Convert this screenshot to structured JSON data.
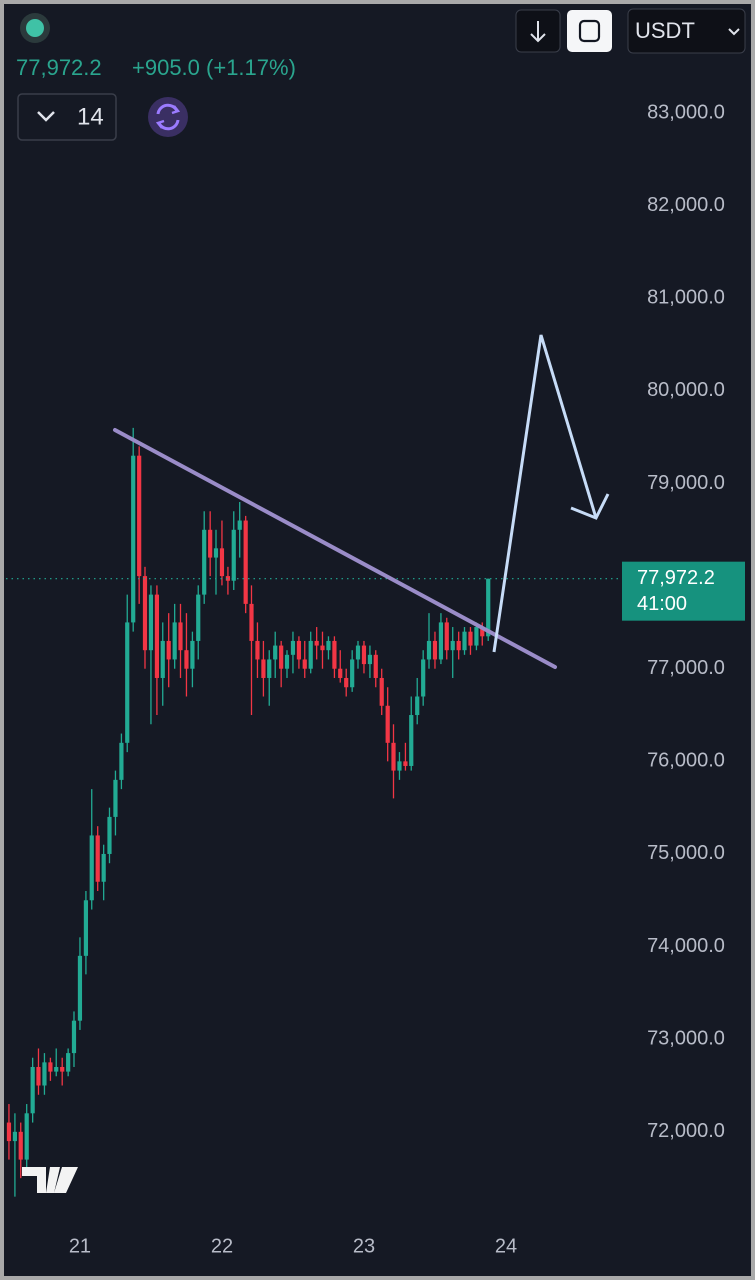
{
  "toolbar": {
    "change": "+905.0 (+1.17%)",
    "interval_count": "14",
    "currency": "USDT"
  },
  "chart_data": {
    "type": "candlestick",
    "x": [
      20.5,
      20.542,
      20.583,
      20.625,
      20.667,
      20.708,
      20.75,
      20.792,
      20.833,
      20.875,
      20.917,
      20.958,
      21.0,
      21.042,
      21.083,
      21.125,
      21.167,
      21.208,
      21.25,
      21.292,
      21.333,
      21.375,
      21.417,
      21.458,
      21.5,
      21.542,
      21.583,
      21.625,
      21.667,
      21.708,
      21.75,
      21.792,
      21.833,
      21.875,
      21.917,
      21.958,
      22.0,
      22.042,
      22.083,
      22.125,
      22.167,
      22.208,
      22.25,
      22.292,
      22.333,
      22.375,
      22.417,
      22.458,
      22.5,
      22.542,
      22.583,
      22.625,
      22.667,
      22.708,
      22.75,
      22.792,
      22.833,
      22.875,
      22.917,
      22.958,
      23.0,
      23.042,
      23.083,
      23.125,
      23.167,
      23.208,
      23.25,
      23.292,
      23.333,
      23.375,
      23.417,
      23.458,
      23.5,
      23.542,
      23.583,
      23.625,
      23.667,
      23.708,
      23.75,
      23.792,
      23.833,
      23.875
    ],
    "open": [
      72100,
      71900,
      72000,
      71700,
      72200,
      72700,
      72500,
      72750,
      72650,
      72700,
      72650,
      72850,
      73200,
      73900,
      74500,
      75200,
      74700,
      75000,
      75400,
      75800,
      76200,
      77500,
      79300,
      78000,
      77200,
      77800,
      76900,
      77300,
      77100,
      77500,
      77200,
      77000,
      77300,
      77800,
      78500,
      78200,
      78300,
      78000,
      77950,
      78500,
      78600,
      77700,
      77300,
      77100,
      76900,
      77100,
      77250,
      77000,
      77150,
      77300,
      77100,
      77000,
      77300,
      77250,
      77200,
      77300,
      77000,
      76900,
      76800,
      77100,
      77250,
      77050,
      77150,
      76900,
      76600,
      76200,
      75900,
      76000,
      75950,
      76500,
      76700,
      77100,
      77300,
      77100,
      77500,
      77200,
      77300,
      77200,
      77400,
      77250,
      77450,
      77350
    ],
    "high": [
      72300,
      72200,
      72100,
      72300,
      72800,
      72900,
      72850,
      72800,
      72900,
      72800,
      72900,
      73300,
      74100,
      74600,
      75700,
      75300,
      75100,
      75500,
      75900,
      76300,
      77800,
      79600,
      79400,
      78100,
      77900,
      77900,
      77500,
      77600,
      77700,
      77700,
      77600,
      77400,
      77900,
      78700,
      78700,
      78500,
      78600,
      78100,
      78700,
      78800,
      78650,
      77900,
      77500,
      77300,
      77200,
      77400,
      77300,
      77200,
      77400,
      77350,
      77300,
      77400,
      77450,
      77400,
      77350,
      77350,
      77200,
      77000,
      77200,
      77300,
      77300,
      77250,
      77200,
      77000,
      76800,
      76400,
      76100,
      76200,
      76700,
      76900,
      77200,
      77600,
      77400,
      77600,
      77550,
      77450,
      77400,
      77450,
      77450,
      77500,
      77500,
      77972.2
    ],
    "low": [
      71700,
      71300,
      71500,
      71600,
      72100,
      72400,
      72400,
      72550,
      72600,
      72500,
      72600,
      72700,
      73100,
      73700,
      74400,
      74600,
      74500,
      74900,
      75200,
      75700,
      76100,
      77400,
      77700,
      77000,
      76400,
      76500,
      76600,
      76800,
      77000,
      76900,
      76700,
      76800,
      77100,
      77700,
      78000,
      77800,
      77900,
      77800,
      77850,
      78200,
      77600,
      76500,
      76900,
      76700,
      76600,
      76900,
      76800,
      76900,
      76950,
      77000,
      76900,
      76950,
      77100,
      77000,
      77100,
      76900,
      76850,
      76700,
      76750,
      77000,
      76950,
      76900,
      76800,
      76500,
      76000,
      75600,
      75800,
      75900,
      75900,
      76400,
      76600,
      77000,
      77000,
      77050,
      77100,
      76900,
      77100,
      77150,
      77150,
      77200,
      77250,
      77300
    ],
    "close": [
      71900,
      72000,
      71700,
      72200,
      72700,
      72500,
      72750,
      72650,
      72700,
      72650,
      72850,
      73200,
      73900,
      74500,
      75200,
      74700,
      75000,
      75400,
      75800,
      76200,
      77500,
      79300,
      78000,
      77200,
      77800,
      76900,
      77300,
      77100,
      77500,
      77200,
      77000,
      77300,
      77800,
      78500,
      78200,
      78300,
      78000,
      77950,
      78500,
      78600,
      77700,
      77300,
      77100,
      76900,
      77100,
      77250,
      77000,
      77150,
      77300,
      77100,
      77000,
      77300,
      77250,
      77200,
      77300,
      77000,
      76900,
      76800,
      77100,
      77250,
      77050,
      77150,
      76900,
      76600,
      76200,
      75900,
      76000,
      75950,
      76500,
      76700,
      77100,
      77300,
      77100,
      77500,
      77200,
      77300,
      77200,
      77400,
      77250,
      77450,
      77350,
      77972.2
    ],
    "up_color": "#22ab94",
    "down_color": "#f23645",
    "xlim": [
      20.437,
      24.803
    ],
    "xticks": [
      21,
      22,
      23,
      24
    ],
    "ylim": [
      70940,
      84220
    ],
    "yticks": [
      {
        "value": 72000,
        "label": "72,000.0"
      },
      {
        "value": 73000,
        "label": "73,000.0"
      },
      {
        "value": 74000,
        "label": "74,000.0"
      },
      {
        "value": 75000,
        "label": "75,000.0"
      },
      {
        "value": 76000,
        "label": "76,000.0"
      },
      {
        "value": 77000,
        "label": "77,000.0"
      },
      {
        "value": 78000,
        "label": "78,000.0"
      },
      {
        "value": 79000,
        "label": "79,000.0"
      },
      {
        "value": 80000,
        "label": "80,000.0"
      },
      {
        "value": 81000,
        "label": "81,000.0"
      },
      {
        "value": 82000,
        "label": "82,000.0"
      },
      {
        "value": 83000,
        "label": "83,000.0"
      }
    ],
    "grid": false,
    "last_price": {
      "value": 77972.2,
      "label": "77,972.2"
    },
    "countdown": "41:00"
  }
}
